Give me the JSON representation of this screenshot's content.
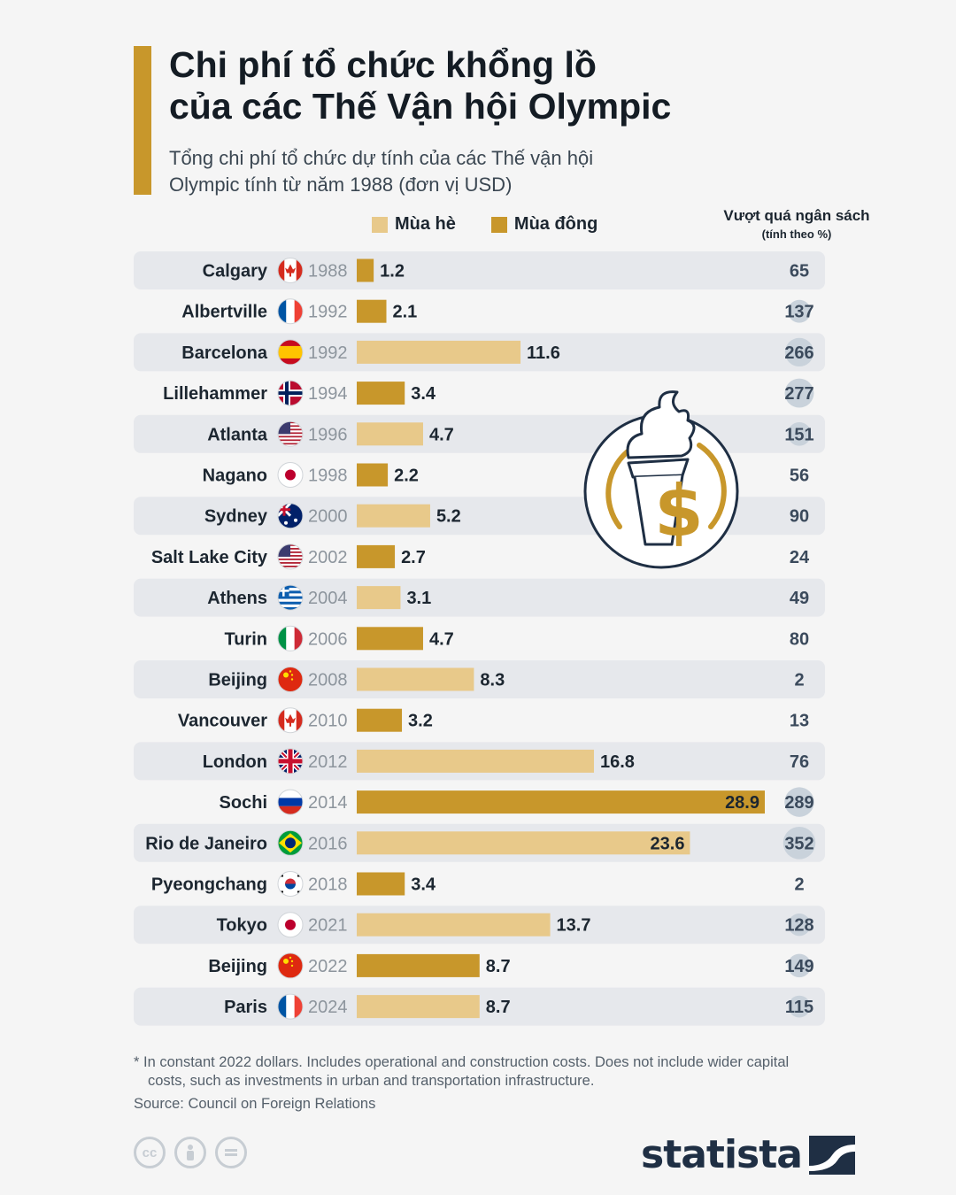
{
  "header": {
    "title": "Chi phí tổ chức khổng lồ\ncủa các Thế Vận hội Olympic",
    "subtitle": "Tổng chi phí tổ chức dự tính của các Thế vận hội\nOlympic tính từ năm 1988 (đơn vị USD)"
  },
  "legend": {
    "summer_label": "Mùa hè",
    "winter_label": "Mùa đông",
    "summer_color": "#e8c98a",
    "winter_color": "#c8972b"
  },
  "overbudget_header": {
    "line1": "Vượt quá ngân sách",
    "line2": "(tính theo %)"
  },
  "chart_data": {
    "type": "bar",
    "orientation": "horizontal",
    "title": "Chi phí tổ chức khổng lồ của các Thế Vận hội Olympic",
    "unit": "USD",
    "xlim": [
      0,
      28.9
    ],
    "rows": [
      {
        "city": "Calgary",
        "year": "1988",
        "season": "winter",
        "value": "1.2",
        "overbudget": "65",
        "flag": "ca"
      },
      {
        "city": "Albertville",
        "year": "1992",
        "season": "winter",
        "value": "2.1",
        "overbudget": "137",
        "flag": "fr"
      },
      {
        "city": "Barcelona",
        "year": "1992",
        "season": "summer",
        "value": "11.6",
        "overbudget": "266",
        "flag": "es"
      },
      {
        "city": "Lillehammer",
        "year": "1994",
        "season": "winter",
        "value": "3.4",
        "overbudget": "277",
        "flag": "no"
      },
      {
        "city": "Atlanta",
        "year": "1996",
        "season": "summer",
        "value": "4.7",
        "overbudget": "151",
        "flag": "us"
      },
      {
        "city": "Nagano",
        "year": "1998",
        "season": "winter",
        "value": "2.2",
        "overbudget": "56",
        "flag": "jp"
      },
      {
        "city": "Sydney",
        "year": "2000",
        "season": "summer",
        "value": "5.2",
        "overbudget": "90",
        "flag": "au"
      },
      {
        "city": "Salt Lake City",
        "year": "2002",
        "season": "winter",
        "value": "2.7",
        "overbudget": "24",
        "flag": "us"
      },
      {
        "city": "Athens",
        "year": "2004",
        "season": "summer",
        "value": "3.1",
        "overbudget": "49",
        "flag": "gr"
      },
      {
        "city": "Turin",
        "year": "2006",
        "season": "winter",
        "value": "4.7",
        "overbudget": "80",
        "flag": "it"
      },
      {
        "city": "Beijing",
        "year": "2008",
        "season": "summer",
        "value": "8.3",
        "overbudget": "2",
        "flag": "cn"
      },
      {
        "city": "Vancouver",
        "year": "2010",
        "season": "winter",
        "value": "3.2",
        "overbudget": "13",
        "flag": "ca"
      },
      {
        "city": "London",
        "year": "2012",
        "season": "summer",
        "value": "16.8",
        "overbudget": "76",
        "flag": "gb"
      },
      {
        "city": "Sochi",
        "year": "2014",
        "season": "winter",
        "value": "28.9",
        "overbudget": "289",
        "flag": "ru"
      },
      {
        "city": "Rio de Janeiro",
        "year": "2016",
        "season": "summer",
        "value": "23.6",
        "overbudget": "352",
        "flag": "br"
      },
      {
        "city": "Pyeongchang",
        "year": "2018",
        "season": "winter",
        "value": "3.4",
        "overbudget": "2",
        "flag": "kr"
      },
      {
        "city": "Tokyo",
        "year": "2021",
        "season": "summer",
        "value": "13.7",
        "overbudget": "128",
        "flag": "jp"
      },
      {
        "city": "Beijing",
        "year": "2022",
        "season": "winter",
        "value": "8.7",
        "overbudget": "149",
        "flag": "cn"
      },
      {
        "city": "Paris",
        "year": "2024",
        "season": "summer",
        "value": "8.7",
        "overbudget": "115",
        "flag": "fr"
      }
    ]
  },
  "footer": {
    "footnote": "* In constant 2022 dollars. Includes operational and construction costs. Does not include wider capital costs, such as investments in urban and transportation infrastructure.",
    "source": "Source: Council on Foreign Relations",
    "brand": "statista",
    "cc_icons": [
      "cc-icon",
      "person-icon",
      "equals-icon"
    ]
  }
}
